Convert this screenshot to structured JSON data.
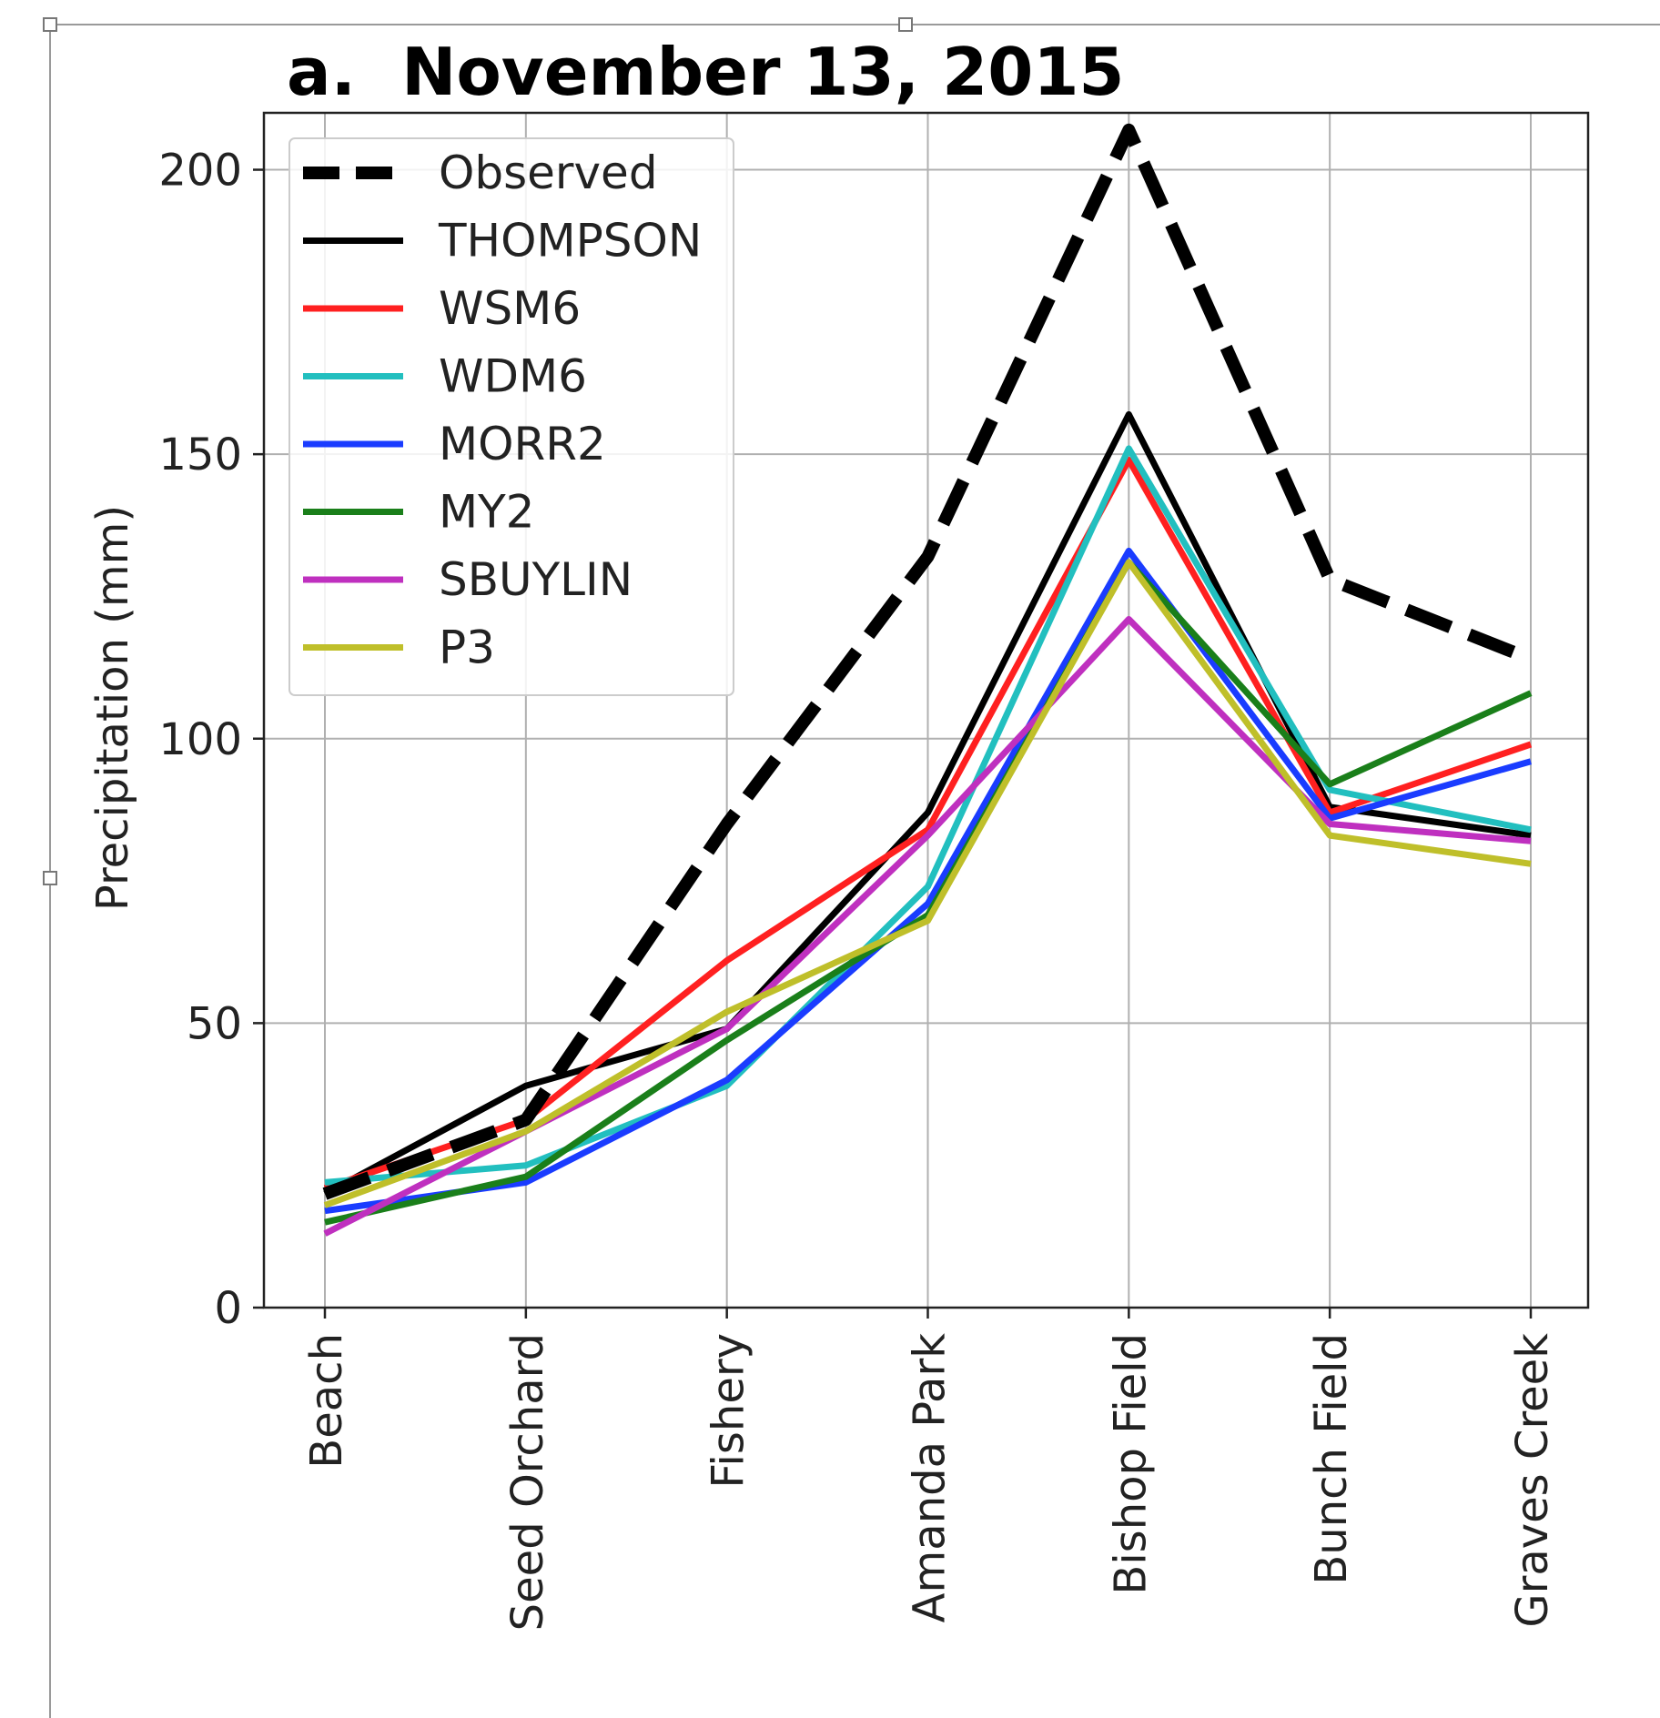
{
  "chart_data": {
    "type": "line",
    "title": "a.  November 13, 2015",
    "ylabel": "Precipitation (mm)",
    "xlabel": "",
    "categories": [
      "Beach",
      "Seed Orchard",
      "Fishery",
      "Amanda Park",
      "Bishop Field",
      "Bunch Field",
      "Graves Creek"
    ],
    "ylim": [
      0,
      210
    ],
    "yticks": [
      "0",
      "50",
      "100",
      "150",
      "200"
    ],
    "grid": true,
    "legend_position": "top-left",
    "series": [
      {
        "name": "Observed",
        "color": "#000000",
        "dashed": true,
        "values": [
          20,
          33,
          85,
          132,
          207,
          128,
          114
        ]
      },
      {
        "name": "THOMPSON",
        "color": "#000000",
        "dashed": false,
        "values": [
          20,
          39,
          49,
          87,
          157,
          88,
          83
        ]
      },
      {
        "name": "WSM6",
        "color": "#ff2020",
        "dashed": false,
        "values": [
          21,
          33,
          61,
          84,
          149,
          87,
          99
        ]
      },
      {
        "name": "WDM6",
        "color": "#22bfbf",
        "dashed": false,
        "values": [
          22,
          25,
          39,
          74,
          151,
          91,
          84
        ]
      },
      {
        "name": "MORR2",
        "color": "#1a3cff",
        "dashed": false,
        "values": [
          17,
          22,
          40,
          71,
          133,
          86,
          96
        ]
      },
      {
        "name": "MY2",
        "color": "#1a7f1a",
        "dashed": false,
        "values": [
          15,
          23,
          47,
          69,
          131,
          92,
          108
        ]
      },
      {
        "name": "SBUYLIN",
        "color": "#bf30bf",
        "dashed": false,
        "values": [
          13,
          31,
          49,
          83,
          121,
          85,
          82
        ]
      },
      {
        "name": "P3",
        "color": "#bfbf2a",
        "dashed": false,
        "values": [
          18,
          31,
          52,
          68,
          131,
          83,
          78
        ]
      }
    ]
  }
}
